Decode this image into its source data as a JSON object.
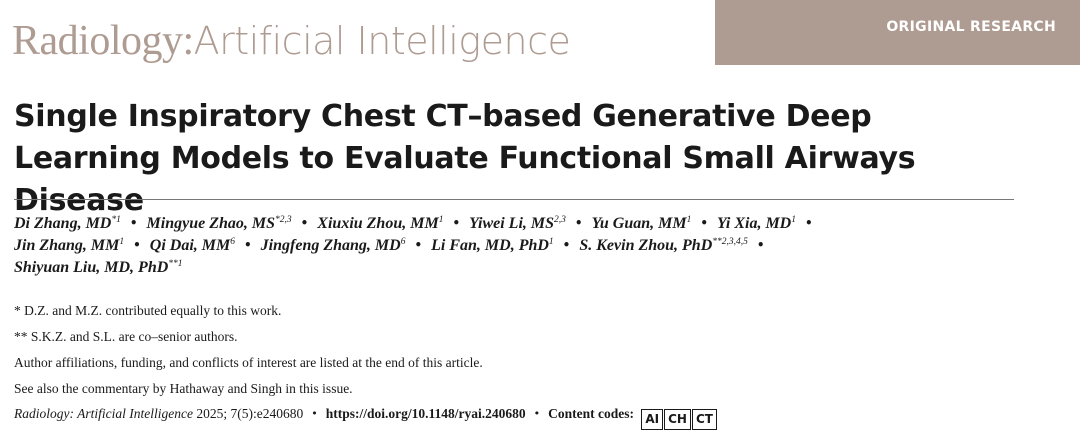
{
  "journal": {
    "main": "Radiology",
    "colon": ":",
    "sub": "Artificial Intelligence"
  },
  "badge": "ORIGINAL RESEARCH",
  "title": "Single Inspiratory Chest CT–based Generative Deep Learning Models to Evaluate Functional Small Airways Disease",
  "authors": [
    {
      "name": "Di Zhang, MD",
      "sup": "*1"
    },
    {
      "name": "Mingyue Zhao, MS",
      "sup": "*2,3"
    },
    {
      "name": "Xiuxiu Zhou, MM",
      "sup": "1"
    },
    {
      "name": "Yiwei Li, MS",
      "sup": "2,3"
    },
    {
      "name": "Yu Guan, MM",
      "sup": "1"
    },
    {
      "name": "Yi Xia, MD",
      "sup": "1"
    },
    {
      "name": "Jin Zhang, MM",
      "sup": "1"
    },
    {
      "name": "Qi Dai, MM",
      "sup": "6"
    },
    {
      "name": "Jingfeng Zhang, MD",
      "sup": "6"
    },
    {
      "name": "Li Fan, MD, PhD",
      "sup": "1"
    },
    {
      "name": "S. Kevin Zhou, PhD",
      "sup": "**2,3,4,5"
    },
    {
      "name": "Shiyuan Liu, MD, PhD",
      "sup": "**1"
    }
  ],
  "author_separator": "•",
  "notes": [
    "* D.Z. and M.Z. contributed equally to this work.",
    "** S.K.Z. and S.L. are co–senior authors.",
    "Author affiliations, funding, and conflicts of interest are listed at the end of this article.",
    "See also the commentary by Hathaway and Singh in this issue."
  ],
  "citation": {
    "journal": "Radiology: Artificial Intelligence",
    "details": " 2025; 7(5):e240680",
    "separator": "•",
    "doi": "https://doi.org/10.1148/ryai.240680",
    "content_codes_label": "Content codes:",
    "codes": [
      "AI",
      "CH",
      "CT"
    ]
  },
  "colors": {
    "accent": "#ae9b91",
    "badge_text": "#ffffff",
    "text": "#1a1a1a"
  }
}
